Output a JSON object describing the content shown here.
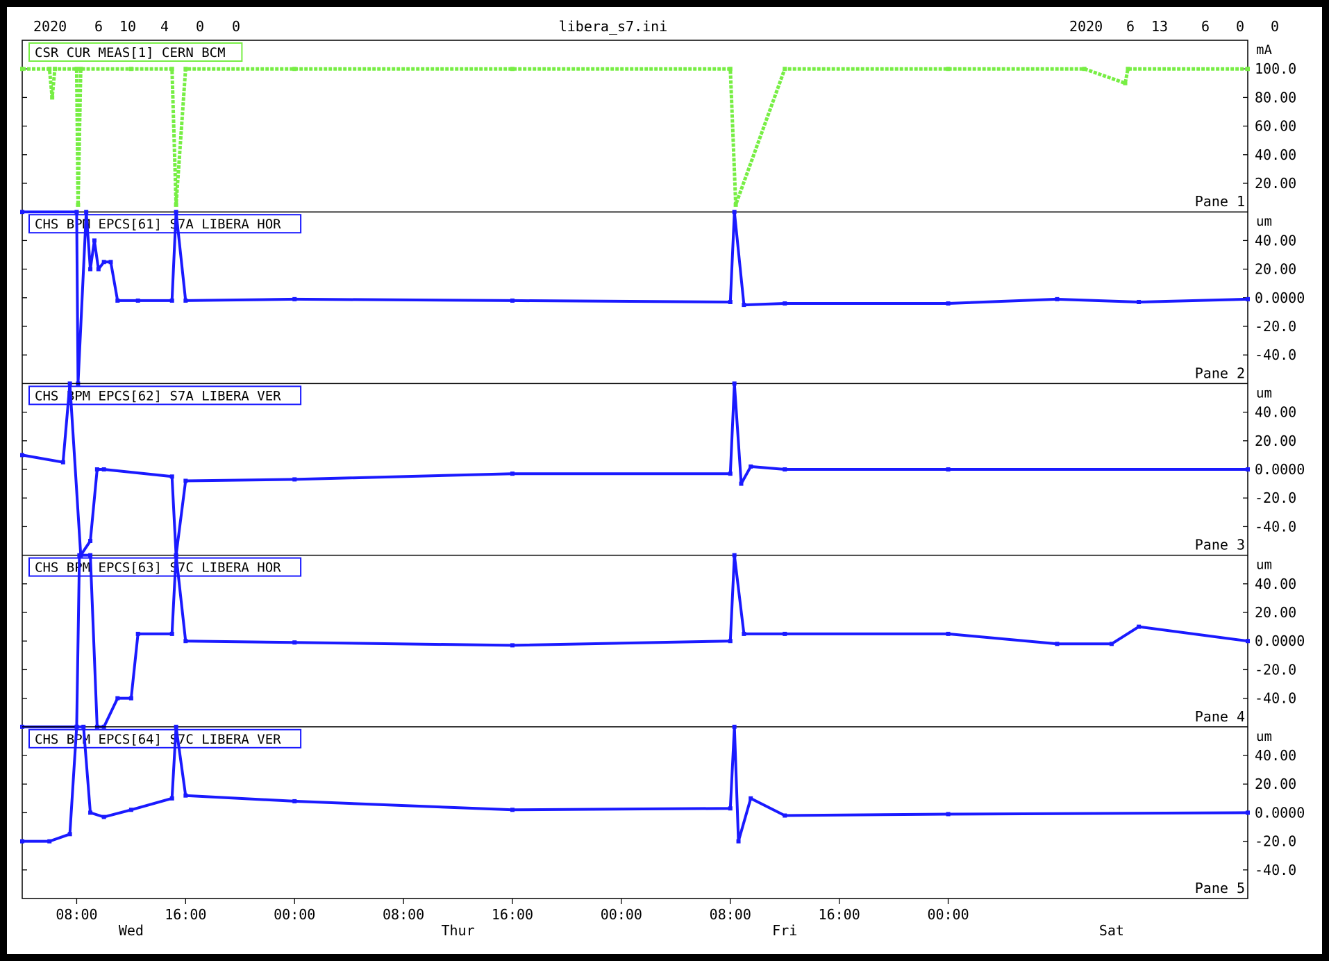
{
  "header": {
    "start_stamp": [
      "2020",
      "6",
      "10",
      "4",
      "0",
      "0"
    ],
    "file_name": "libera_s7.ini",
    "end_stamp": [
      "2020",
      "6",
      "13",
      "6",
      "0",
      "0"
    ]
  },
  "colors": {
    "current_trace": "#77ee44",
    "bpm_trace": "#1a1aff",
    "frame": "#000000",
    "background": "#ffffff"
  },
  "x_axis": {
    "ticks": [
      "08:00",
      "16:00",
      "00:00",
      "08:00",
      "16:00",
      "00:00",
      "08:00",
      "16:00",
      "00:00"
    ],
    "day_labels": [
      {
        "label": "Wed",
        "hour": 12
      },
      {
        "label": "Thur",
        "hour": 36
      },
      {
        "label": "Fri",
        "hour": 60
      },
      {
        "label": "Sat",
        "hour": 84
      }
    ],
    "start_hour": 4,
    "end_hour": 78
  },
  "chart_data": [
    {
      "type": "scatter",
      "pane": "Pane 1",
      "series": [
        {
          "name": "CSR CUR MEAS[1] CERN BCM"
        }
      ],
      "unit": "mA",
      "ylim": [
        0,
        120
      ],
      "yticks": [
        "100.0",
        "80.00",
        "60.00",
        "40.00",
        "20.00"
      ],
      "x_hours": [
        4,
        6,
        6.2,
        6.4,
        8,
        8.1,
        8.3,
        12,
        15,
        15.3,
        16,
        24,
        40,
        56,
        56.4,
        60,
        72,
        82,
        85,
        85.2,
        94
      ],
      "values": [
        100,
        100,
        80,
        100,
        100,
        5,
        100,
        100,
        100,
        5,
        100,
        100,
        100,
        100,
        5,
        100,
        100,
        100,
        90,
        100,
        100
      ]
    },
    {
      "type": "scatter",
      "pane": "Pane 2",
      "series": [
        {
          "name": "CHS BPM EPCS[61] S7A LIBERA HOR"
        }
      ],
      "unit": "um",
      "ylim": [
        -60,
        60
      ],
      "yticks": [
        "40.00",
        "20.00",
        "0.0000",
        "-20.0",
        "-40.0"
      ],
      "x_hours": [
        4,
        8,
        8.1,
        8.7,
        9,
        9.3,
        9.6,
        10,
        10.5,
        11,
        12.5,
        15,
        15.3,
        16,
        24,
        40,
        56,
        56.3,
        57,
        60,
        72,
        80,
        86,
        94
      ],
      "values": [
        60,
        60,
        -60,
        60,
        20,
        40,
        20,
        25,
        25,
        -2,
        -2,
        -2,
        60,
        -2,
        -1,
        -2,
        -3,
        60,
        -5,
        -4,
        -4,
        -1,
        -3,
        -1
      ]
    },
    {
      "type": "scatter",
      "pane": "Pane 3",
      "series": [
        {
          "name": "CHS BPM EPCS[62] S7A LIBERA VER"
        }
      ],
      "unit": "um",
      "ylim": [
        -60,
        60
      ],
      "yticks": [
        "40.00",
        "20.00",
        "0.0000",
        "-20.0",
        "-40.0"
      ],
      "x_hours": [
        4,
        7,
        7.5,
        8.3,
        9,
        9.5,
        10,
        15,
        15.3,
        16,
        24,
        40,
        56,
        56.3,
        56.8,
        57.5,
        60,
        72,
        94
      ],
      "values": [
        10,
        5,
        60,
        -60,
        -50,
        0,
        0,
        -5,
        -60,
        -8,
        -7,
        -3,
        -3,
        60,
        -10,
        2,
        0,
        0,
        0
      ]
    },
    {
      "type": "scatter",
      "pane": "Pane 4",
      "series": [
        {
          "name": "CHS BPM EPCS[63] S7C LIBERA HOR"
        }
      ],
      "unit": "um",
      "ylim": [
        -60,
        60
      ],
      "yticks": [
        "40.00",
        "20.00",
        "0.0000",
        "-20.0",
        "-40.0"
      ],
      "x_hours": [
        4,
        8,
        8.2,
        9,
        9.5,
        10,
        11,
        12,
        12.5,
        15,
        15.3,
        16,
        24,
        40,
        56,
        56.3,
        57,
        60,
        72,
        80,
        84,
        86,
        94
      ],
      "values": [
        -60,
        -60,
        60,
        60,
        -60,
        -60,
        -40,
        -40,
        5,
        5,
        60,
        0,
        -1,
        -3,
        0,
        60,
        5,
        5,
        5,
        -2,
        -2,
        10,
        0
      ]
    },
    {
      "type": "scatter",
      "pane": "Pane 5",
      "series": [
        {
          "name": "CHS BPM EPCS[64] S7C LIBERA VER"
        }
      ],
      "unit": "um",
      "ylim": [
        -60,
        60
      ],
      "yticks": [
        "40.00",
        "20.00",
        "0.0000",
        "-20.0",
        "-40.0"
      ],
      "x_hours": [
        4,
        6,
        7.5,
        8,
        8.5,
        9,
        10,
        12,
        15,
        15.3,
        16,
        24,
        40,
        56,
        56.3,
        56.6,
        57.5,
        60,
        72,
        94
      ],
      "values": [
        -20,
        -20,
        -15,
        60,
        60,
        0,
        -3,
        2,
        10,
        60,
        12,
        8,
        2,
        3,
        60,
        -20,
        10,
        -2,
        -1,
        0
      ]
    }
  ],
  "pane_labels": [
    "Pane 1",
    "Pane 2",
    "Pane 3",
    "Pane 4",
    "Pane 5"
  ]
}
